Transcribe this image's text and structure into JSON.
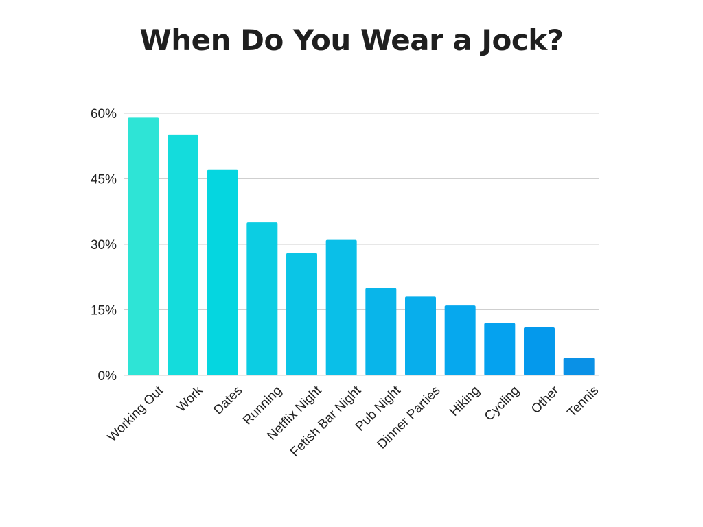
{
  "chart_data": {
    "type": "bar",
    "title": "When Do You Wear a Jock?",
    "xlabel": "",
    "ylabel": "",
    "categories": [
      "Working Out",
      "Work",
      "Dates",
      "Running",
      "Netflix Night",
      "Fetish Bar Night",
      "Pub Night",
      "Dinner Parties",
      "Hiking",
      "Cycling",
      "Other",
      "Tennis"
    ],
    "values": [
      59,
      55,
      47,
      35,
      28,
      31,
      20,
      18,
      16,
      12,
      11,
      4
    ],
    "ylim": [
      0,
      60
    ],
    "yticks": [
      0,
      15,
      30,
      45,
      60
    ],
    "ytick_labels": [
      "0%",
      "15%",
      "30%",
      "45%",
      "60%"
    ],
    "grid": true,
    "legend": "none",
    "bar_colors": [
      "#2ee4d6",
      "#14dcdc",
      "#05d6e0",
      "#0ccde3",
      "#0bc5e6",
      "#0abfe8",
      "#09b5ea",
      "#08aeec",
      "#06a8ee",
      "#05a2ef",
      "#0499ec",
      "#0a91e6"
    ]
  }
}
